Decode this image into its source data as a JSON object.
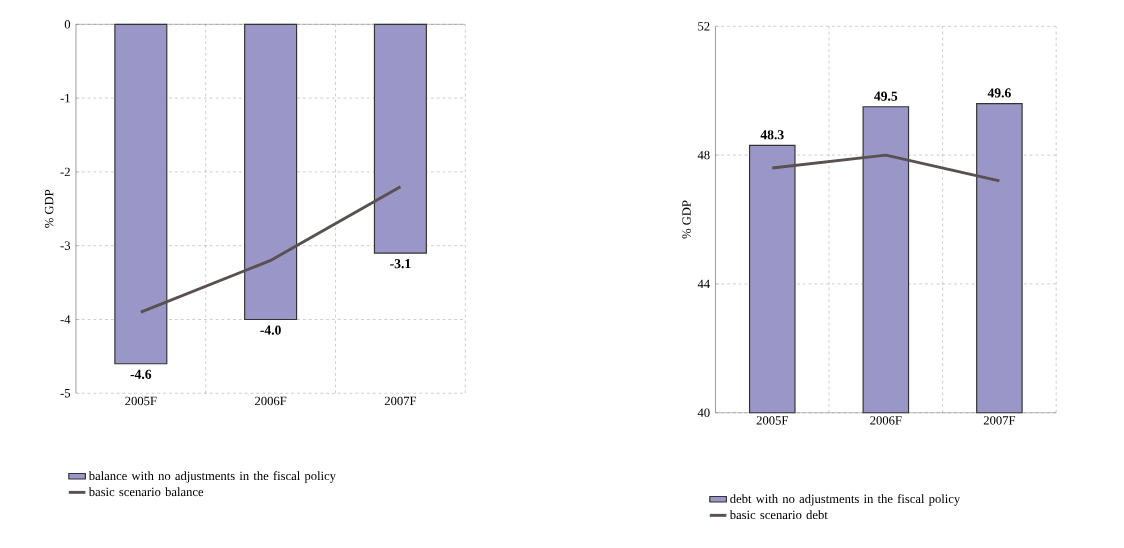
{
  "chart_data": [
    {
      "type": "bar",
      "ylabel": "% GDP",
      "categories": [
        "2005F",
        "2006F",
        "2007F"
      ],
      "series": [
        {
          "name": "balance with no adjustments in the fiscal policy",
          "color": "#9b96c8",
          "values": [
            -4.6,
            -4.0,
            -3.1
          ],
          "value_labels": [
            "-4.6",
            "-4.0",
            "-3.1"
          ]
        },
        {
          "name": "basic scenario balance",
          "type": "line",
          "color": "#595150",
          "values": [
            -3.9,
            -3.2,
            -2.2
          ]
        }
      ],
      "ylim": [
        -5,
        0
      ],
      "yticks": [
        -5,
        -4,
        -3,
        -2,
        -1,
        0
      ],
      "grid": true,
      "legend": "bottom",
      "marker": "none",
      "line_style": "solid"
    },
    {
      "type": "bar",
      "ylabel": "% GDP",
      "categories": [
        "2005F",
        "2006F",
        "2007F"
      ],
      "series": [
        {
          "name": "debt with no adjustments in the fiscal policy",
          "color": "#9b96c8",
          "values": [
            48.3,
            49.5,
            49.6
          ],
          "value_labels": [
            "48.3",
            "49.5",
            "49.6"
          ]
        },
        {
          "name": "basic scenario debt",
          "type": "line",
          "color": "#595150",
          "values": [
            47.6,
            48.0,
            47.2
          ]
        }
      ],
      "ylim": [
        40,
        52
      ],
      "yticks": [
        40,
        44,
        48,
        52
      ],
      "grid": true,
      "legend": "bottom",
      "marker": "none",
      "line_style": "solid"
    }
  ]
}
